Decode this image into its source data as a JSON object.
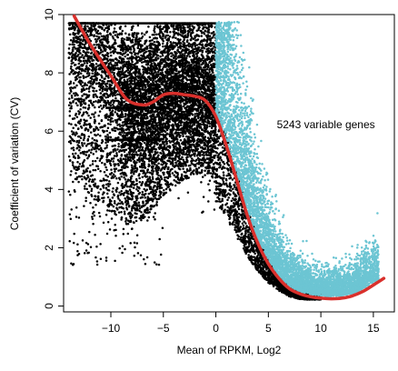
{
  "chart_data": {
    "type": "scatter",
    "xlabel": "Mean of RPKM, Log2",
    "ylabel": "Coefficient of variation (CV)",
    "xlim": [
      -14.5,
      17
    ],
    "ylim": [
      -0.2,
      10
    ],
    "x_ticks": [
      -10,
      -5,
      0,
      5,
      10,
      15
    ],
    "y_ticks": [
      0,
      2,
      4,
      6,
      8,
      10
    ],
    "grid": false,
    "annotation": {
      "text": "5243 variable genes",
      "x": 5.8,
      "y": 6.1
    },
    "series": [
      {
        "color": "#000000",
        "point_cloud": "non-variable genes below the fitted curve; densest around x in [-14, 10] with CV from 0.2 to 9.7",
        "horizontal_cap_lines": [
          {
            "y": 9.7,
            "x_from": -13.5,
            "x_to": 0
          },
          {
            "y": 6.8,
            "x_from": -10.5,
            "x_to": -4.5
          },
          {
            "y": 5.7,
            "x_from": -10.5,
            "x_to": -5.5
          }
        ]
      },
      {
        "color": "#6cc5d3",
        "point_cloud": "variable genes above the fitted curve, x in [0, 16]"
      },
      {
        "color": "#d9302c",
        "style": "fitted curve",
        "x": [
          -13.5,
          -12,
          -10,
          -8.5,
          -7,
          -6,
          -5,
          -4,
          -3,
          -2,
          -1,
          0,
          1,
          2,
          3,
          4,
          5,
          6,
          7,
          8,
          9,
          10,
          11,
          12,
          13,
          14,
          15,
          16
        ],
        "y": [
          9.95,
          9.0,
          7.9,
          7.1,
          6.9,
          7.0,
          7.25,
          7.3,
          7.25,
          7.2,
          7.05,
          6.5,
          5.5,
          4.3,
          3.1,
          2.15,
          1.45,
          0.95,
          0.6,
          0.42,
          0.32,
          0.27,
          0.25,
          0.27,
          0.35,
          0.5,
          0.72,
          0.95
        ]
      }
    ]
  }
}
